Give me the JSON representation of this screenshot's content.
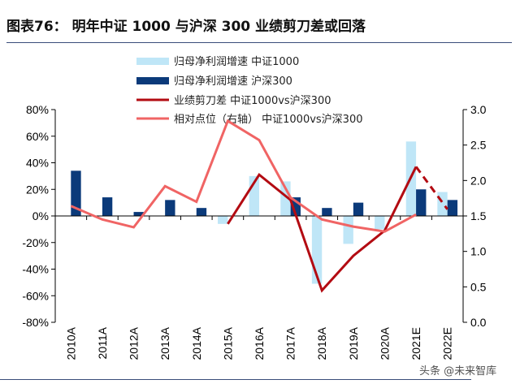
{
  "title": "图表76：  明年中证 1000 与沪深 300 业绩剪刀差或回落",
  "watermark": "头条 @未来智库",
  "chart_data": {
    "type": "bar+line",
    "categories": [
      "2010A",
      "2011A",
      "2012A",
      "2013A",
      "2014A",
      "2015A",
      "2016A",
      "2017A",
      "2018A",
      "2019A",
      "2020A",
      "2021E",
      "2022E"
    ],
    "left_axis": {
      "ylim": [
        -80,
        80
      ],
      "ticks": [
        "80%",
        "60%",
        "40%",
        "20%",
        "0%",
        "-20%",
        "-40%",
        "-60%",
        "-80%"
      ]
    },
    "right_axis": {
      "ylim": [
        0,
        3
      ],
      "ticks": [
        "3.0",
        "2.5",
        "2.0",
        "1.5",
        "1.0",
        "0.5",
        "0.0"
      ]
    },
    "legend_placement": "top-center",
    "series": [
      {
        "name": "归母净利润增速 中证1000",
        "type": "bar",
        "axis": "left",
        "color": "#bfe6f7",
        "values": [
          null,
          null,
          null,
          null,
          null,
          -6,
          30,
          26,
          -51,
          -21,
          -10,
          56,
          18
        ]
      },
      {
        "name": "归母净利润增速 沪深300",
        "type": "bar",
        "axis": "left",
        "color": "#0b3a7a",
        "values": [
          34,
          14,
          3,
          12,
          6,
          null,
          null,
          14,
          6,
          10,
          null,
          20,
          12
        ]
      },
      {
        "name": "业绩剪刀差 中证1000vs沪深300",
        "type": "line",
        "axis": "left",
        "color": "#b30b12",
        "values": [
          null,
          null,
          null,
          null,
          null,
          -6,
          31,
          12,
          -56,
          -30,
          -11,
          37,
          5
        ],
        "dashed_from": "2021E"
      },
      {
        "name": "相对点位（右轴） 中证1000vs沪深300",
        "type": "line",
        "axis": "right",
        "color": "#f06464",
        "values": [
          1.64,
          1.45,
          1.34,
          1.92,
          1.7,
          2.84,
          2.57,
          1.76,
          1.45,
          1.35,
          1.28,
          1.52,
          null
        ]
      }
    ]
  }
}
